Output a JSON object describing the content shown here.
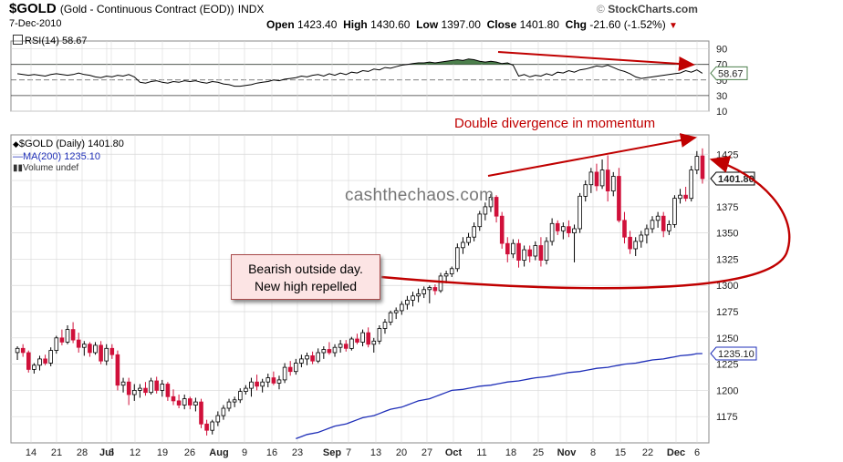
{
  "header": {
    "symbol": "$GOLD",
    "description": "(Gold - Continuous Contract (EOD))",
    "exchange": "INDX",
    "date": "7-Dec-2010",
    "open_label": "Open",
    "open": "1423.40",
    "high_label": "High",
    "high": "1430.60",
    "low_label": "Low",
    "low": "1397.00",
    "close_label": "Close",
    "close": "1401.80",
    "chg_label": "Chg",
    "chg": "-21.60 (-1.52%)",
    "brand": "StockCharts.com"
  },
  "rsi_panel": {
    "label": "RSI(14) 58.67",
    "last_value": "58.67"
  },
  "price_panel": {
    "legend_price": "$GOLD (Daily) 1401.80",
    "legend_ma": "MA(200) 1235.10",
    "legend_volume": "Volume undef",
    "last_price_tag": "1401.80",
    "ma_tag": "1235.10"
  },
  "annotations": {
    "callout_line1": "Bearish outside day.",
    "callout_line2": "New high repelled",
    "divergence": "Double divergence in momentum",
    "watermark": "cashthechaos.com"
  },
  "colors": {
    "up_candle": "#ffffff",
    "down_candle": "#d0103a",
    "ma_line": "#1f2fb8",
    "rsi_line": "#000000",
    "rsi_fill": "#4c7f4c",
    "annotation": "#c00000",
    "grid": "#d8d8d8"
  },
  "chart_data": [
    {
      "type": "line",
      "title": "RSI(14) 58.67",
      "ylim": [
        10,
        100
      ],
      "y_ticks": [
        90,
        70,
        50,
        30,
        10
      ],
      "overbought": 70,
      "oversold": 30,
      "midline": 50,
      "series": [
        {
          "name": "RSI(14)",
          "values": [
            58,
            57,
            56,
            57,
            56,
            55,
            57,
            58,
            57,
            56,
            57,
            59,
            57,
            56,
            54,
            53,
            55,
            54,
            56,
            55,
            57,
            54,
            47,
            46,
            48,
            49,
            47,
            46,
            48,
            47,
            49,
            48,
            49,
            47,
            46,
            48,
            47,
            45,
            44,
            42,
            42,
            43,
            44,
            46,
            47,
            48,
            50,
            49,
            51,
            52,
            53,
            55,
            54,
            56,
            57,
            55,
            58,
            56,
            59,
            57,
            60,
            59,
            62,
            61,
            64,
            63,
            66,
            65,
            67,
            69,
            70,
            71,
            72,
            72,
            73,
            72,
            73,
            74,
            75,
            76,
            75,
            77,
            76,
            74,
            73,
            74,
            73,
            71,
            72,
            69,
            55,
            57,
            54,
            56,
            55,
            58,
            56,
            60,
            59,
            62,
            60,
            63,
            64,
            66,
            68,
            67,
            69,
            66,
            63,
            61,
            58,
            54,
            52,
            53,
            54,
            55,
            56,
            57,
            58,
            59,
            62,
            60,
            63,
            58.67
          ]
        }
      ]
    },
    {
      "type": "candlestick",
      "title": "$GOLD (Daily) 1401.80",
      "ylim": [
        1150,
        1440
      ],
      "y_ticks": [
        1425,
        1400,
        1375,
        1350,
        1325,
        1300,
        1275,
        1250,
        1225,
        1200,
        1175
      ],
      "x_tick_labels": [
        "14",
        "21",
        "28",
        "Jul",
        "6",
        "12",
        "19",
        "26",
        "Aug",
        "9",
        "16",
        "23",
        "Sep",
        "7",
        "13",
        "20",
        "27",
        "Oct",
        "11",
        "18",
        "25",
        "Nov",
        "8",
        "15",
        "22",
        "Dec",
        "6"
      ],
      "ohlc": [
        {
          "o": 1236,
          "h": 1242,
          "l": 1229,
          "c": 1240
        },
        {
          "o": 1240,
          "h": 1244,
          "l": 1232,
          "c": 1236
        },
        {
          "o": 1236,
          "h": 1238,
          "l": 1217,
          "c": 1220
        },
        {
          "o": 1220,
          "h": 1226,
          "l": 1216,
          "c": 1224
        },
        {
          "o": 1224,
          "h": 1233,
          "l": 1219,
          "c": 1230
        },
        {
          "o": 1230,
          "h": 1234,
          "l": 1224,
          "c": 1226
        },
        {
          "o": 1226,
          "h": 1241,
          "l": 1223,
          "c": 1238
        },
        {
          "o": 1238,
          "h": 1252,
          "l": 1235,
          "c": 1250
        },
        {
          "o": 1250,
          "h": 1258,
          "l": 1243,
          "c": 1246
        },
        {
          "o": 1246,
          "h": 1262,
          "l": 1244,
          "c": 1258
        },
        {
          "o": 1258,
          "h": 1265,
          "l": 1245,
          "c": 1248
        },
        {
          "o": 1248,
          "h": 1255,
          "l": 1236,
          "c": 1241
        },
        {
          "o": 1241,
          "h": 1247,
          "l": 1233,
          "c": 1244
        },
        {
          "o": 1244,
          "h": 1246,
          "l": 1232,
          "c": 1236
        },
        {
          "o": 1236,
          "h": 1246,
          "l": 1234,
          "c": 1243
        },
        {
          "o": 1243,
          "h": 1247,
          "l": 1225,
          "c": 1228
        },
        {
          "o": 1228,
          "h": 1244,
          "l": 1224,
          "c": 1240
        },
        {
          "o": 1240,
          "h": 1244,
          "l": 1230,
          "c": 1234
        },
        {
          "o": 1234,
          "h": 1238,
          "l": 1200,
          "c": 1205
        },
        {
          "o": 1205,
          "h": 1212,
          "l": 1198,
          "c": 1208
        },
        {
          "o": 1208,
          "h": 1212,
          "l": 1186,
          "c": 1196
        },
        {
          "o": 1196,
          "h": 1206,
          "l": 1190,
          "c": 1200
        },
        {
          "o": 1200,
          "h": 1206,
          "l": 1193,
          "c": 1202
        },
        {
          "o": 1202,
          "h": 1208,
          "l": 1195,
          "c": 1198
        },
        {
          "o": 1198,
          "h": 1212,
          "l": 1196,
          "c": 1209
        },
        {
          "o": 1209,
          "h": 1213,
          "l": 1197,
          "c": 1200
        },
        {
          "o": 1200,
          "h": 1210,
          "l": 1194,
          "c": 1206
        },
        {
          "o": 1206,
          "h": 1208,
          "l": 1190,
          "c": 1194
        },
        {
          "o": 1194,
          "h": 1201,
          "l": 1186,
          "c": 1190
        },
        {
          "o": 1190,
          "h": 1196,
          "l": 1183,
          "c": 1186
        },
        {
          "o": 1186,
          "h": 1196,
          "l": 1182,
          "c": 1192
        },
        {
          "o": 1192,
          "h": 1194,
          "l": 1182,
          "c": 1186
        },
        {
          "o": 1186,
          "h": 1193,
          "l": 1180,
          "c": 1189
        },
        {
          "o": 1189,
          "h": 1192,
          "l": 1164,
          "c": 1168
        },
        {
          "o": 1168,
          "h": 1172,
          "l": 1157,
          "c": 1162
        },
        {
          "o": 1162,
          "h": 1172,
          "l": 1158,
          "c": 1170
        },
        {
          "o": 1170,
          "h": 1180,
          "l": 1166,
          "c": 1176
        },
        {
          "o": 1176,
          "h": 1186,
          "l": 1172,
          "c": 1183
        },
        {
          "o": 1183,
          "h": 1192,
          "l": 1180,
          "c": 1189
        },
        {
          "o": 1189,
          "h": 1194,
          "l": 1184,
          "c": 1191
        },
        {
          "o": 1191,
          "h": 1202,
          "l": 1188,
          "c": 1199
        },
        {
          "o": 1199,
          "h": 1205,
          "l": 1196,
          "c": 1202
        },
        {
          "o": 1202,
          "h": 1212,
          "l": 1194,
          "c": 1208
        },
        {
          "o": 1208,
          "h": 1215,
          "l": 1200,
          "c": 1204
        },
        {
          "o": 1204,
          "h": 1211,
          "l": 1198,
          "c": 1208
        },
        {
          "o": 1208,
          "h": 1216,
          "l": 1203,
          "c": 1212
        },
        {
          "o": 1212,
          "h": 1218,
          "l": 1205,
          "c": 1207
        },
        {
          "o": 1207,
          "h": 1214,
          "l": 1201,
          "c": 1210
        },
        {
          "o": 1210,
          "h": 1226,
          "l": 1207,
          "c": 1222
        },
        {
          "o": 1222,
          "h": 1228,
          "l": 1214,
          "c": 1218
        },
        {
          "o": 1218,
          "h": 1230,
          "l": 1215,
          "c": 1226
        },
        {
          "o": 1226,
          "h": 1234,
          "l": 1222,
          "c": 1230
        },
        {
          "o": 1230,
          "h": 1236,
          "l": 1224,
          "c": 1233
        },
        {
          "o": 1233,
          "h": 1237,
          "l": 1225,
          "c": 1228
        },
        {
          "o": 1228,
          "h": 1240,
          "l": 1226,
          "c": 1236
        },
        {
          "o": 1236,
          "h": 1242,
          "l": 1230,
          "c": 1239
        },
        {
          "o": 1239,
          "h": 1246,
          "l": 1234,
          "c": 1236
        },
        {
          "o": 1236,
          "h": 1244,
          "l": 1232,
          "c": 1241
        },
        {
          "o": 1241,
          "h": 1248,
          "l": 1236,
          "c": 1244
        },
        {
          "o": 1244,
          "h": 1248,
          "l": 1237,
          "c": 1240
        },
        {
          "o": 1240,
          "h": 1251,
          "l": 1238,
          "c": 1249
        },
        {
          "o": 1249,
          "h": 1254,
          "l": 1244,
          "c": 1246
        },
        {
          "o": 1246,
          "h": 1258,
          "l": 1242,
          "c": 1255
        },
        {
          "o": 1255,
          "h": 1260,
          "l": 1241,
          "c": 1244
        },
        {
          "o": 1244,
          "h": 1250,
          "l": 1236,
          "c": 1247
        },
        {
          "o": 1247,
          "h": 1262,
          "l": 1244,
          "c": 1259
        },
        {
          "o": 1259,
          "h": 1268,
          "l": 1254,
          "c": 1265
        },
        {
          "o": 1265,
          "h": 1276,
          "l": 1262,
          "c": 1274
        },
        {
          "o": 1274,
          "h": 1279,
          "l": 1268,
          "c": 1276
        },
        {
          "o": 1276,
          "h": 1285,
          "l": 1272,
          "c": 1282
        },
        {
          "o": 1282,
          "h": 1290,
          "l": 1277,
          "c": 1286
        },
        {
          "o": 1286,
          "h": 1294,
          "l": 1280,
          "c": 1290
        },
        {
          "o": 1290,
          "h": 1297,
          "l": 1284,
          "c": 1292
        },
        {
          "o": 1292,
          "h": 1299,
          "l": 1288,
          "c": 1296
        },
        {
          "o": 1296,
          "h": 1300,
          "l": 1283,
          "c": 1298
        },
        {
          "o": 1298,
          "h": 1301,
          "l": 1291,
          "c": 1295
        },
        {
          "o": 1295,
          "h": 1312,
          "l": 1293,
          "c": 1309
        },
        {
          "o": 1309,
          "h": 1314,
          "l": 1302,
          "c": 1311
        },
        {
          "o": 1311,
          "h": 1318,
          "l": 1308,
          "c": 1316
        },
        {
          "o": 1316,
          "h": 1340,
          "l": 1313,
          "c": 1336
        },
        {
          "o": 1336,
          "h": 1346,
          "l": 1330,
          "c": 1341
        },
        {
          "o": 1341,
          "h": 1350,
          "l": 1338,
          "c": 1346
        },
        {
          "o": 1346,
          "h": 1360,
          "l": 1342,
          "c": 1356
        },
        {
          "o": 1356,
          "h": 1371,
          "l": 1352,
          "c": 1368
        },
        {
          "o": 1368,
          "h": 1379,
          "l": 1362,
          "c": 1375
        },
        {
          "o": 1375,
          "h": 1387,
          "l": 1370,
          "c": 1384
        },
        {
          "o": 1384,
          "h": 1386,
          "l": 1360,
          "c": 1366
        },
        {
          "o": 1366,
          "h": 1370,
          "l": 1335,
          "c": 1340
        },
        {
          "o": 1340,
          "h": 1346,
          "l": 1322,
          "c": 1330
        },
        {
          "o": 1330,
          "h": 1344,
          "l": 1326,
          "c": 1340
        },
        {
          "o": 1340,
          "h": 1344,
          "l": 1317,
          "c": 1324
        },
        {
          "o": 1324,
          "h": 1338,
          "l": 1318,
          "c": 1334
        },
        {
          "o": 1334,
          "h": 1338,
          "l": 1322,
          "c": 1328
        },
        {
          "o": 1328,
          "h": 1342,
          "l": 1324,
          "c": 1338
        },
        {
          "o": 1338,
          "h": 1346,
          "l": 1318,
          "c": 1324
        },
        {
          "o": 1324,
          "h": 1346,
          "l": 1320,
          "c": 1342
        },
        {
          "o": 1342,
          "h": 1364,
          "l": 1338,
          "c": 1359
        },
        {
          "o": 1359,
          "h": 1362,
          "l": 1348,
          "c": 1352
        },
        {
          "o": 1352,
          "h": 1360,
          "l": 1344,
          "c": 1356
        },
        {
          "o": 1356,
          "h": 1362,
          "l": 1346,
          "c": 1350
        },
        {
          "o": 1350,
          "h": 1358,
          "l": 1322,
          "c": 1354
        },
        {
          "o": 1354,
          "h": 1388,
          "l": 1350,
          "c": 1385
        },
        {
          "o": 1385,
          "h": 1400,
          "l": 1380,
          "c": 1396
        },
        {
          "o": 1396,
          "h": 1412,
          "l": 1388,
          "c": 1408
        },
        {
          "o": 1408,
          "h": 1416,
          "l": 1390,
          "c": 1395
        },
        {
          "o": 1395,
          "h": 1420,
          "l": 1392,
          "c": 1410
        },
        {
          "o": 1410,
          "h": 1424,
          "l": 1380,
          "c": 1390
        },
        {
          "o": 1390,
          "h": 1408,
          "l": 1385,
          "c": 1404
        },
        {
          "o": 1404,
          "h": 1412,
          "l": 1360,
          "c": 1362
        },
        {
          "o": 1362,
          "h": 1370,
          "l": 1340,
          "c": 1346
        },
        {
          "o": 1346,
          "h": 1352,
          "l": 1330,
          "c": 1335
        },
        {
          "o": 1335,
          "h": 1346,
          "l": 1328,
          "c": 1342
        },
        {
          "o": 1342,
          "h": 1352,
          "l": 1336,
          "c": 1348
        },
        {
          "o": 1348,
          "h": 1358,
          "l": 1340,
          "c": 1354
        },
        {
          "o": 1354,
          "h": 1366,
          "l": 1350,
          "c": 1362
        },
        {
          "o": 1362,
          "h": 1370,
          "l": 1355,
          "c": 1366
        },
        {
          "o": 1366,
          "h": 1370,
          "l": 1346,
          "c": 1352
        },
        {
          "o": 1352,
          "h": 1362,
          "l": 1348,
          "c": 1358
        },
        {
          "o": 1358,
          "h": 1386,
          "l": 1355,
          "c": 1383
        },
        {
          "o": 1383,
          "h": 1392,
          "l": 1378,
          "c": 1386
        },
        {
          "o": 1386,
          "h": 1394,
          "l": 1380,
          "c": 1383
        },
        {
          "o": 1383,
          "h": 1414,
          "l": 1380,
          "c": 1410
        },
        {
          "o": 1410,
          "h": 1428,
          "l": 1406,
          "c": 1423
        },
        {
          "o": 1423.4,
          "h": 1430.6,
          "l": 1397.0,
          "c": 1401.8
        }
      ],
      "series": [
        {
          "name": "MA(200)",
          "start_index": 50,
          "values": [
            1154,
            1156,
            1158,
            1160,
            1162,
            1164,
            1166,
            1168,
            1170,
            1172,
            1174,
            1176,
            1178,
            1180,
            1182,
            1184,
            1186,
            1188,
            1190,
            1192,
            1194,
            1196,
            1198,
            1200,
            1201,
            1202,
            1203,
            1204,
            1205,
            1206,
            1207,
            1208,
            1209,
            1210,
            1211,
            1212,
            1213,
            1214,
            1215,
            1216,
            1217,
            1218,
            1219,
            1220,
            1221,
            1222,
            1223,
            1224,
            1225,
            1226,
            1227,
            1228,
            1229,
            1230,
            1231,
            1232,
            1233,
            1234,
            1235,
            1235.1
          ]
        }
      ]
    }
  ]
}
